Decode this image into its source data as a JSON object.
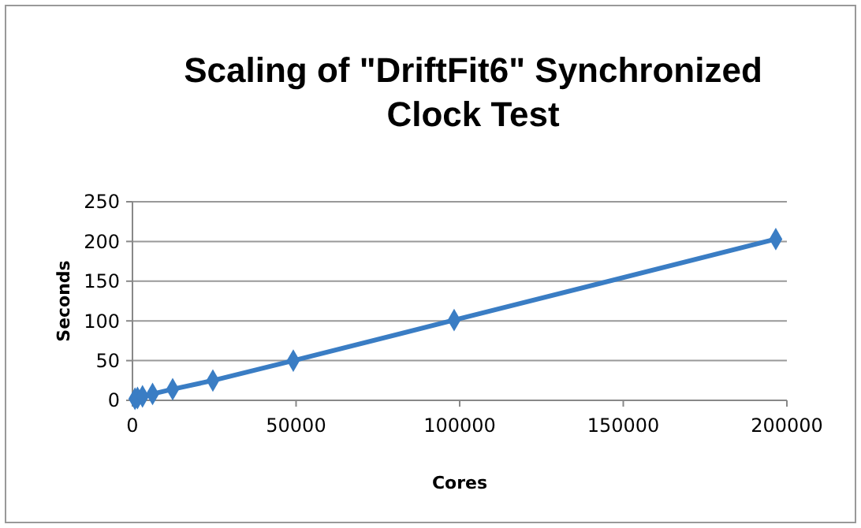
{
  "chart_data": {
    "type": "line",
    "title": "Scaling of \"DriftFit6\" Synchronized Clock Test",
    "xlabel": "Cores",
    "ylabel": "Seconds",
    "x": [
      768,
      1536,
      3072,
      6144,
      12288,
      24576,
      49152,
      98304,
      196608
    ],
    "series": [
      {
        "color": "#3a7dc4",
        "values": [
          2,
          3,
          5,
          8,
          14,
          25,
          50,
          101,
          203
        ]
      }
    ],
    "xlim": [
      0,
      200000
    ],
    "xticks": [
      0,
      50000,
      100000,
      150000,
      200000
    ],
    "ylim": [
      0,
      250
    ],
    "yticks": [
      0,
      50,
      100,
      150,
      200,
      250
    ],
    "grid": "y",
    "marker": "diamond",
    "line_style": "solid"
  }
}
